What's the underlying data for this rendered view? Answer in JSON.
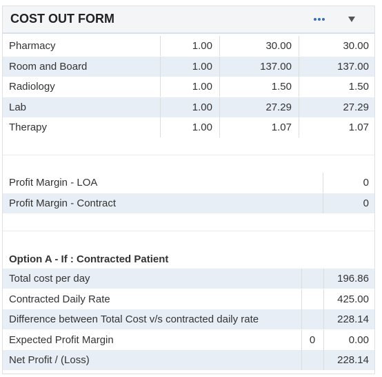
{
  "header": {
    "title": "COST OUT FORM"
  },
  "cost_table": {
    "rows": [
      [
        "Pharmacy",
        "1.00",
        "30.00",
        "30.00"
      ],
      [
        "Room and Board",
        "1.00",
        "137.00",
        "137.00"
      ],
      [
        "Radiology",
        "1.00",
        "1.50",
        "1.50"
      ],
      [
        "Lab",
        "1.00",
        "27.29",
        "27.29"
      ],
      [
        "Therapy",
        "1.00",
        "1.07",
        "1.07"
      ]
    ]
  },
  "profit_margin": {
    "rows": [
      {
        "label": "Profit Margin - LOA",
        "value": "0"
      },
      {
        "label": "Profit Margin - Contract",
        "value": "0"
      }
    ]
  },
  "option_a": {
    "title": "Option A - If : Contracted Patient",
    "rows": [
      {
        "label": "Total cost per day",
        "value": "196.86"
      },
      {
        "label": "Contracted Daily Rate",
        "value": "425.00"
      },
      {
        "label": "Difference between Total Cost v/s contracted daily rate",
        "value": "228.14"
      },
      {
        "label": "Expected Profit Margin",
        "margin": "0",
        "value": "0.00"
      },
      {
        "label": "Net Profit / (Loss)",
        "value": "228.14"
      }
    ]
  }
}
